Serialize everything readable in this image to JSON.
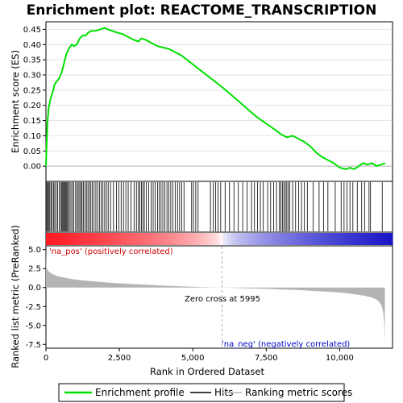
{
  "title": "Enrichment plot: REACTOME_TRANSCRIPTION",
  "colors": {
    "es_line": "#00e000",
    "hit": "#000000",
    "metric_fill": "#b4b4b4",
    "pos_label": "#cc0000",
    "neg_label": "#0000cc",
    "bar_red": "#e8001a",
    "bar_blue": "#1a10c8"
  },
  "chart_data": [
    {
      "type": "line",
      "name": "Enrichment profile",
      "ylabel": "Enrichment score (ES)",
      "xlim": [
        0,
        11800
      ],
      "ylim": [
        -0.05,
        0.475
      ],
      "yticks": [
        0.0,
        0.05,
        0.1,
        0.15,
        0.2,
        0.25,
        0.3,
        0.35,
        0.4,
        0.45
      ],
      "ytick_labels": [
        "0.00",
        "0.05",
        "0.10",
        "0.15",
        "0.20",
        "0.25",
        "0.30",
        "0.35",
        "0.40",
        "0.45"
      ],
      "x": [
        0,
        20,
        50,
        90,
        150,
        220,
        300,
        380,
        460,
        540,
        620,
        700,
        800,
        880,
        950,
        1050,
        1150,
        1250,
        1350,
        1450,
        1550,
        1700,
        1850,
        2000,
        2100,
        2250,
        2400,
        2600,
        2800,
        3000,
        3150,
        3250,
        3400,
        3600,
        3800,
        4000,
        4200,
        4400,
        4600,
        4800,
        5000,
        5200,
        5400,
        5600,
        5800,
        6000,
        6300,
        6600,
        6900,
        7200,
        7500,
        7800,
        8000,
        8200,
        8400,
        8600,
        8800,
        9000,
        9200,
        9400,
        9600,
        9800,
        10000,
        10200,
        10350,
        10500,
        10650,
        10800,
        10950,
        11100,
        11250,
        11400,
        11550
      ],
      "y": [
        0.0,
        0.06,
        0.14,
        0.19,
        0.22,
        0.24,
        0.27,
        0.28,
        0.29,
        0.31,
        0.34,
        0.37,
        0.39,
        0.4,
        0.395,
        0.4,
        0.42,
        0.43,
        0.43,
        0.44,
        0.445,
        0.445,
        0.45,
        0.455,
        0.45,
        0.445,
        0.44,
        0.435,
        0.425,
        0.415,
        0.41,
        0.42,
        0.415,
        0.405,
        0.395,
        0.39,
        0.385,
        0.375,
        0.365,
        0.35,
        0.335,
        0.32,
        0.305,
        0.29,
        0.275,
        0.26,
        0.235,
        0.21,
        0.185,
        0.16,
        0.14,
        0.12,
        0.105,
        0.095,
        0.1,
        0.09,
        0.08,
        0.065,
        0.045,
        0.03,
        0.02,
        0.01,
        -0.005,
        -0.01,
        -0.005,
        -0.01,
        0.0,
        0.01,
        0.005,
        0.01,
        0.0,
        0.005,
        0.01
      ]
    },
    {
      "type": "scatter",
      "name": "Hits",
      "hit_ranks": [
        30,
        60,
        90,
        130,
        170,
        210,
        260,
        300,
        350,
        400,
        450,
        500,
        540,
        570,
        600,
        630,
        660,
        690,
        720,
        760,
        800,
        850,
        900,
        950,
        1010,
        1060,
        1100,
        1150,
        1190,
        1230,
        1280,
        1330,
        1380,
        1430,
        1480,
        1530,
        1580,
        1640,
        1700,
        1760,
        1820,
        1880,
        1940,
        2000,
        2060,
        2120,
        2200,
        2300,
        2400,
        2480,
        2560,
        2640,
        2720,
        2800,
        2900,
        3000,
        3080,
        3150,
        3200,
        3250,
        3300,
        3350,
        3420,
        3500,
        3580,
        3650,
        3720,
        3800,
        3860,
        3920,
        3980,
        4050,
        4120,
        4180,
        4250,
        4320,
        4400,
        4480,
        4550,
        4620,
        4700,
        4960,
        5020,
        5100,
        5180,
        5600,
        5700,
        5780,
        5860,
        5950,
        6100,
        6250,
        6400,
        6550,
        6700,
        6850,
        7000,
        7100,
        7200,
        7300,
        7400,
        7550,
        7650,
        7750,
        7850,
        7950,
        8000,
        8050,
        8100,
        8150,
        8200,
        8250,
        8300,
        8400,
        8500,
        8600,
        8700,
        8800,
        8900,
        9100,
        9300,
        9450,
        9600,
        9850,
        10050,
        10150,
        10250,
        10350,
        10450,
        10600,
        10750,
        10850,
        11000,
        11050,
        11450
      ]
    },
    {
      "type": "area",
      "name": "Ranking metric scores",
      "xlabel": "Rank in Ordered Dataset",
      "ylabel": "Ranked list metric (PreRanked)",
      "xlim": [
        0,
        11800
      ],
      "ylim": [
        -8.0,
        5.5
      ],
      "xticks": [
        0,
        2500,
        5000,
        7500,
        10000
      ],
      "xtick_labels": [
        "0",
        "2,500",
        "5,000",
        "7,500",
        "10,000"
      ],
      "yticks": [
        -7.5,
        -5.0,
        -2.5,
        0.0,
        2.5,
        5.0
      ],
      "ytick_labels": [
        "-7.5",
        "-5.0",
        "-2.5",
        "0.0",
        "2.5",
        "5.0"
      ],
      "x": [
        0,
        10,
        40,
        100,
        200,
        400,
        700,
        1000,
        1500,
        2000,
        2500,
        3000,
        3500,
        4000,
        4500,
        5000,
        5500,
        5995,
        6500,
        7000,
        7500,
        8000,
        8500,
        9000,
        9500,
        10000,
        10400,
        10800,
        11100,
        11300,
        11420,
        11480,
        11520,
        11540
      ],
      "values": [
        5.2,
        3.0,
        2.4,
        2.1,
        1.8,
        1.5,
        1.25,
        1.05,
        0.85,
        0.7,
        0.55,
        0.45,
        0.35,
        0.25,
        0.17,
        0.1,
        0.04,
        0.0,
        -0.06,
        -0.12,
        -0.18,
        -0.25,
        -0.33,
        -0.42,
        -0.53,
        -0.66,
        -0.82,
        -1.05,
        -1.3,
        -1.7,
        -2.3,
        -3.2,
        -4.8,
        -7.5
      ]
    }
  ],
  "annotations": {
    "pos_label": "'na_pos' (positively correlated)",
    "neg_label": "'na_neg' (negatively correlated)",
    "zero_cross": "Zero cross at 5995"
  },
  "legend": {
    "items": [
      {
        "label": "Enrichment profile",
        "icon": "green-line-icon"
      },
      {
        "label": "Hits",
        "icon": "black-line-icon"
      },
      {
        "label": "Ranking metric scores",
        "icon": "gray-line-icon"
      }
    ]
  }
}
